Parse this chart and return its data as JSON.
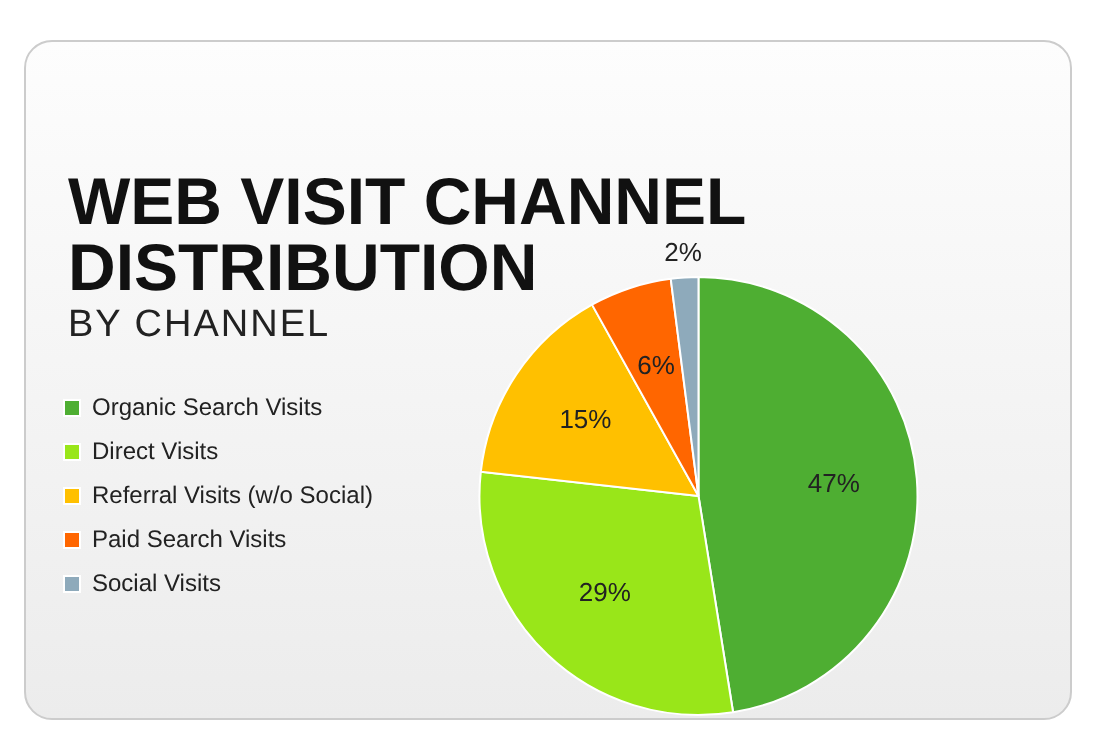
{
  "chart_data": {
    "type": "pie",
    "title": "WEB VISIT CHANNEL DISTRIBUTION",
    "subtitle": "BY CHANNEL",
    "categories": [
      "Organic Search Visits",
      "Direct Visits",
      "Referral Visits (w/o Social)",
      "Paid Search Visits",
      "Social Visits"
    ],
    "values": [
      47,
      29,
      15,
      6,
      2
    ],
    "value_labels": [
      "47%",
      "29%",
      "15%",
      "6%",
      "2%"
    ],
    "colors": [
      "#4eae32",
      "#99e619",
      "#ffc000",
      "#ff6600",
      "#8eaabb"
    ],
    "legend": "left"
  }
}
